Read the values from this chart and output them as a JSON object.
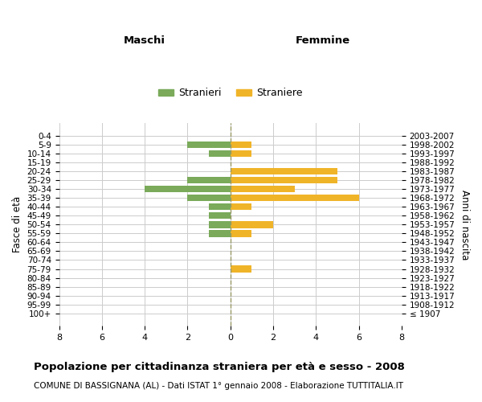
{
  "age_groups": [
    "100+",
    "95-99",
    "90-94",
    "85-89",
    "80-84",
    "75-79",
    "70-74",
    "65-69",
    "60-64",
    "55-59",
    "50-54",
    "45-49",
    "40-44",
    "35-39",
    "30-34",
    "25-29",
    "20-24",
    "15-19",
    "10-14",
    "5-9",
    "0-4"
  ],
  "birth_years": [
    "≤ 1907",
    "1908-1912",
    "1913-1917",
    "1918-1922",
    "1923-1927",
    "1928-1932",
    "1933-1937",
    "1938-1942",
    "1943-1947",
    "1948-1952",
    "1953-1957",
    "1958-1962",
    "1963-1967",
    "1968-1972",
    "1973-1977",
    "1978-1982",
    "1983-1987",
    "1988-1992",
    "1993-1997",
    "1998-2002",
    "2003-2007"
  ],
  "maschi": [
    0,
    0,
    0,
    0,
    0,
    0,
    0,
    0,
    0,
    1,
    1,
    1,
    1,
    2,
    4,
    2,
    0,
    0,
    1,
    2,
    0
  ],
  "femmine": [
    0,
    0,
    0,
    0,
    0,
    1,
    0,
    0,
    0,
    1,
    2,
    0,
    1,
    6,
    3,
    5,
    5,
    0,
    1,
    1,
    0
  ],
  "color_maschi": "#7aaa5a",
  "color_femmine": "#f0b429",
  "label_maschi": "Stranieri",
  "label_femmine": "Straniere",
  "xlabel_left": "Maschi",
  "xlabel_right": "Femmine",
  "ylabel_left": "Fasce di età",
  "ylabel_right": "Anni di nascita",
  "title": "Popolazione per cittadinanza straniera per età e sesso - 2008",
  "subtitle": "COMUNE DI BASSIGNANA (AL) - Dati ISTAT 1° gennaio 2008 - Elaborazione TUTTITALIA.IT",
  "xlim": 8,
  "background_color": "#ffffff",
  "grid_color": "#cccccc"
}
